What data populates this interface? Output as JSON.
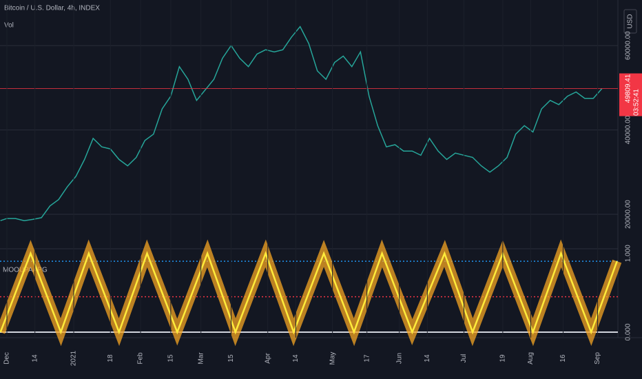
{
  "header": {
    "title": "Bitcoin / U.S. Dollar, 4h, INDEX",
    "currency": "USD",
    "volume_label": "Vol"
  },
  "chart_data": [
    {
      "type": "line",
      "xlim": [
        -3.2,
        283.4
      ],
      "xticks": [
        {
          "value": 0,
          "label": "Dec"
        },
        {
          "value": 13,
          "label": "14"
        },
        {
          "value": 31,
          "label": "2021"
        },
        {
          "value": 48,
          "label": "18"
        },
        {
          "value": 62,
          "label": "Feb"
        },
        {
          "value": 76,
          "label": "15"
        },
        {
          "value": 90,
          "label": "Mar"
        },
        {
          "value": 104,
          "label": "15"
        },
        {
          "value": 121,
          "label": "Apr"
        },
        {
          "value": 134,
          "label": "14"
        },
        {
          "value": 151,
          "label": "May"
        },
        {
          "value": 167,
          "label": "17"
        },
        {
          "value": 182,
          "label": "Jun"
        },
        {
          "value": 195,
          "label": "14"
        },
        {
          "value": 212,
          "label": "Jul"
        },
        {
          "value": 230,
          "label": "19"
        },
        {
          "value": 243,
          "label": "Aug"
        },
        {
          "value": 258,
          "label": "16"
        },
        {
          "value": 274,
          "label": "Sep"
        }
      ],
      "ylim": [
        12000,
        70800
      ],
      "yticks": [
        {
          "value": 20000,
          "label": "20000.00"
        },
        {
          "value": 40000,
          "label": "40000.00"
        },
        {
          "value": 60000,
          "label": "60000.00"
        }
      ],
      "x": [
        -3,
        0,
        4,
        8,
        12,
        16,
        20,
        24,
        28,
        32,
        36,
        40,
        44,
        48,
        52,
        56,
        60,
        64,
        68,
        72,
        76,
        80,
        84,
        88,
        92,
        96,
        100,
        104,
        108,
        112,
        116,
        120,
        124,
        128,
        132,
        136,
        140,
        144,
        148,
        152,
        156,
        160,
        164,
        168,
        172,
        176,
        180,
        184,
        188,
        192,
        196,
        200,
        204,
        208,
        212,
        216,
        220,
        224,
        228,
        232,
        236,
        240,
        244,
        248,
        252,
        256,
        260,
        264,
        268,
        272,
        276
      ],
      "series": [
        {
          "color": "#26a69a",
          "values": [
            18500,
            19000,
            19000,
            18500,
            18800,
            19200,
            22000,
            23500,
            26500,
            29000,
            33000,
            38000,
            36000,
            35500,
            33000,
            31500,
            33500,
            37500,
            39000,
            45000,
            48000,
            55000,
            52000,
            47000,
            49500,
            52000,
            57000,
            60000,
            57000,
            55000,
            58000,
            59000,
            58500,
            59000,
            62000,
            64500,
            60500,
            54000,
            52000,
            56000,
            57500,
            55000,
            58500,
            48000,
            41000,
            36000,
            36500,
            35000,
            35000,
            34000,
            38000,
            35000,
            33000,
            34500,
            34000,
            33500,
            31500,
            30000,
            31500,
            33500,
            39000,
            41000,
            39500,
            45000,
            47000,
            46000,
            48000,
            49000,
            47500,
            47500,
            49800
          ]
        }
      ],
      "last_price": 49809.41,
      "countdown": "03:52:41",
      "price_line_color": "#f23645"
    },
    {
      "type": "line",
      "title": "MOOUPAAPG",
      "xlim": [
        -3.2,
        283.4
      ],
      "ylim": [
        -0.07,
        1.05
      ],
      "yticks": [
        {
          "value": 1,
          "label": "1.000"
        },
        {
          "value": 0,
          "label": "0.000"
        }
      ],
      "x": [
        -3,
        11,
        25,
        38,
        52,
        65,
        79,
        93,
        106,
        120,
        133,
        147,
        161,
        174,
        188,
        203,
        216,
        230,
        244,
        257,
        271,
        283
      ],
      "series": [
        {
          "color": "#ffeb3b",
          "glow_color": "#f5a623",
          "values": [
            0,
            1,
            0,
            1,
            0,
            1,
            0,
            1,
            0,
            1,
            0,
            1,
            0,
            1,
            0,
            1,
            0,
            1,
            0,
            1,
            0,
            0.9
          ]
        }
      ],
      "levels": [
        {
          "value": 0.9,
          "color": "#2196f3",
          "dashed": true
        },
        {
          "value": 0.45,
          "color": "#f23645",
          "dashed": true
        },
        {
          "value": 0,
          "color": "#d1d4dc",
          "dashed": false
        }
      ]
    }
  ]
}
